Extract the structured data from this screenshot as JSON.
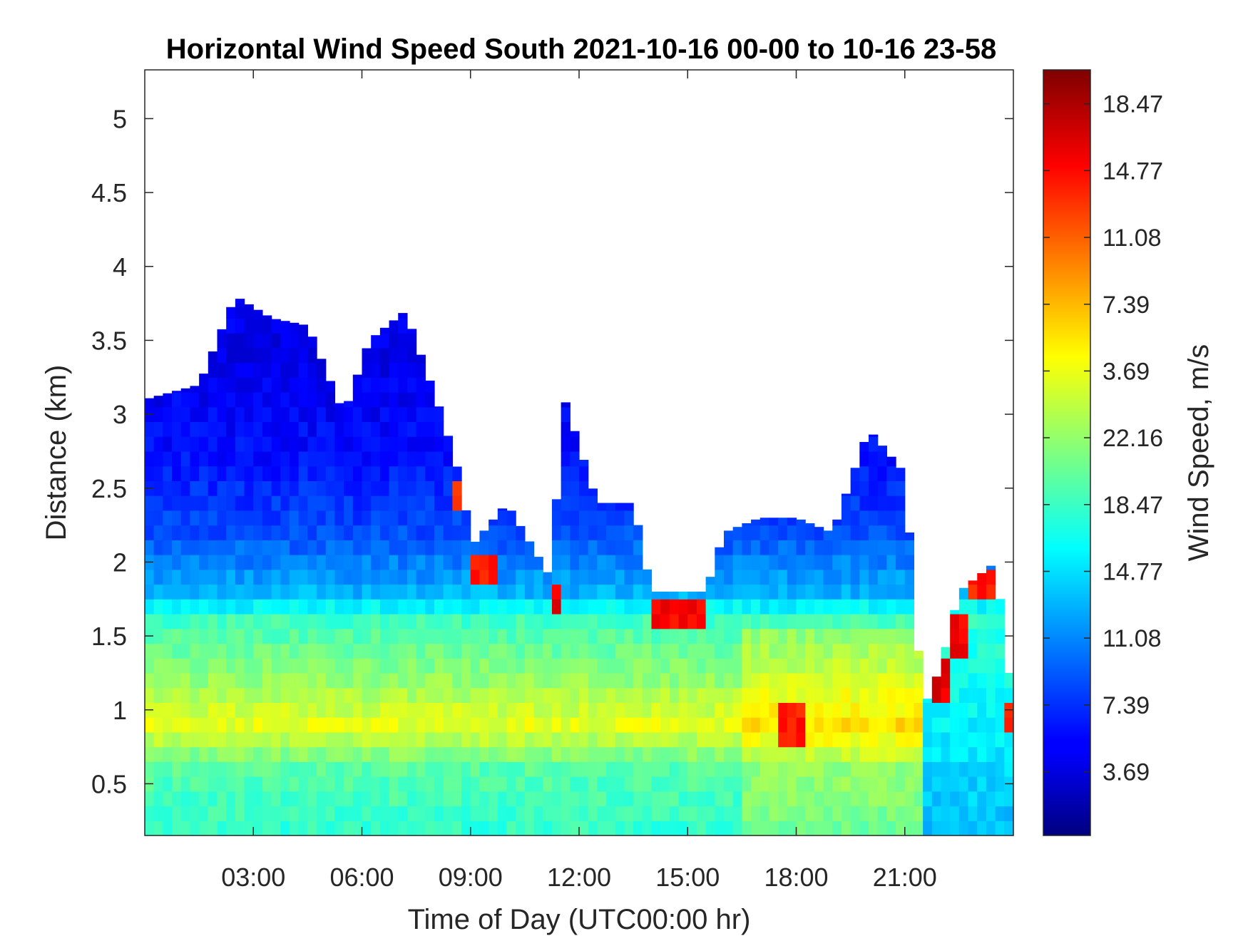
{
  "chart_data": {
    "type": "heatmap",
    "title": "Horizontal Wind Speed South 2021-10-16 00-00 to 10-16 23-58",
    "xlabel": "Time of Day (UTC00:00 hr)",
    "ylabel": "Distance (km)",
    "xlim_hours": [
      0,
      24
    ],
    "ylim": [
      0.15,
      5.33
    ],
    "x_ticks": [
      {
        "value": 3,
        "label": "03:00"
      },
      {
        "value": 6,
        "label": "06:00"
      },
      {
        "value": 9,
        "label": "09:00"
      },
      {
        "value": 12,
        "label": "12:00"
      },
      {
        "value": 15,
        "label": "15:00"
      },
      {
        "value": 18,
        "label": "18:00"
      },
      {
        "value": 21,
        "label": "21:00"
      }
    ],
    "y_ticks": [
      {
        "value": 0.5,
        "label": "0.5"
      },
      {
        "value": 1,
        "label": "1"
      },
      {
        "value": 1.5,
        "label": "1.5"
      },
      {
        "value": 2,
        "label": "2"
      },
      {
        "value": 2.5,
        "label": "2.5"
      },
      {
        "value": 3,
        "label": "3"
      },
      {
        "value": 3.5,
        "label": "3.5"
      },
      {
        "value": 4,
        "label": "4"
      },
      {
        "value": 4.5,
        "label": "4.5"
      },
      {
        "value": 5,
        "label": "5"
      }
    ],
    "colorbar": {
      "label": "Wind Speed, m/s",
      "colormap": "jet",
      "ticks": [
        {
          "fraction": 0.0833,
          "label": "3.69"
        },
        {
          "fraction": 0.1705,
          "label": "7.39"
        },
        {
          "fraction": 0.2578,
          "label": "11.08"
        },
        {
          "fraction": 0.345,
          "label": "14.77"
        },
        {
          "fraction": 0.4322,
          "label": "18.47"
        },
        {
          "fraction": 0.5195,
          "label": "22.16"
        },
        {
          "fraction": 0.6067,
          "label": "3.69"
        },
        {
          "fraction": 0.6939,
          "label": "7.39"
        },
        {
          "fraction": 0.7812,
          "label": "11.08"
        },
        {
          "fraction": 0.8684,
          "label": "14.77"
        },
        {
          "fraction": 0.9556,
          "label": "18.47"
        }
      ]
    },
    "cell_size": {
      "hours": 0.25,
      "km": 0.1
    },
    "data_top_km_profile": [
      {
        "hour": 0.0,
        "top": 3.1
      },
      {
        "hour": 1.5,
        "top": 3.2
      },
      {
        "hour": 2.5,
        "top": 3.8
      },
      {
        "hour": 3.5,
        "top": 3.65
      },
      {
        "hour": 4.5,
        "top": 3.6
      },
      {
        "hour": 5.5,
        "top": 3.0
      },
      {
        "hour": 6.2,
        "top": 3.5
      },
      {
        "hour": 7.2,
        "top": 3.7
      },
      {
        "hour": 8.2,
        "top": 3.0
      },
      {
        "hour": 8.8,
        "top": 2.5
      },
      {
        "hour": 9.0,
        "top": 2.1
      },
      {
        "hour": 10.0,
        "top": 2.4
      },
      {
        "hour": 11.2,
        "top": 1.9
      },
      {
        "hour": 11.6,
        "top": 3.1
      },
      {
        "hour": 12.5,
        "top": 2.4
      },
      {
        "hour": 13.5,
        "top": 2.4
      },
      {
        "hour": 14.0,
        "top": 1.8
      },
      {
        "hour": 15.5,
        "top": 1.8
      },
      {
        "hour": 16.0,
        "top": 2.2
      },
      {
        "hour": 17.0,
        "top": 2.3
      },
      {
        "hour": 18.0,
        "top": 2.3
      },
      {
        "hour": 19.0,
        "top": 2.2
      },
      {
        "hour": 20.0,
        "top": 2.9
      },
      {
        "hour": 21.0,
        "top": 2.6
      },
      {
        "hour": 21.5,
        "top": 1.0
      },
      {
        "hour": 22.0,
        "top": 1.3
      },
      {
        "hour": 22.5,
        "top": 1.8
      },
      {
        "hour": 23.5,
        "top": 2.0
      },
      {
        "hour": 24.0,
        "top": 1.0
      }
    ],
    "value_by_height_km": [
      {
        "km": 0.15,
        "value": 0.42
      },
      {
        "km": 0.6,
        "value": 0.46
      },
      {
        "km": 0.9,
        "value": 0.6
      },
      {
        "km": 1.2,
        "value": 0.52
      },
      {
        "km": 1.6,
        "value": 0.44
      },
      {
        "km": 1.8,
        "value": 0.3
      },
      {
        "km": 2.2,
        "value": 0.2
      },
      {
        "km": 2.7,
        "value": 0.14
      },
      {
        "km": 3.2,
        "value": 0.11
      },
      {
        "km": 4.0,
        "value": 0.1
      }
    ],
    "high_speed_patches": [
      {
        "h0": 8.6,
        "h1": 9.0,
        "k0": 2.35,
        "k1": 2.55,
        "value": 0.8
      },
      {
        "h0": 9.0,
        "h1": 9.8,
        "k0": 1.85,
        "k1": 2.1,
        "value": 0.85
      },
      {
        "h0": 11.2,
        "h1": 11.6,
        "k0": 1.7,
        "k1": 1.85,
        "value": 0.9
      },
      {
        "h0": 14.0,
        "h1": 15.6,
        "k0": 1.55,
        "k1": 1.8,
        "value": 0.88
      },
      {
        "h0": 17.6,
        "h1": 18.2,
        "k0": 0.75,
        "k1": 1.0,
        "value": 0.85
      },
      {
        "h0": 21.7,
        "h1": 22.2,
        "k0": 1.05,
        "k1": 1.3,
        "value": 0.9
      },
      {
        "h0": 22.2,
        "h1": 22.8,
        "k0": 1.4,
        "k1": 1.7,
        "value": 0.88
      },
      {
        "h0": 22.8,
        "h1": 23.6,
        "k0": 1.8,
        "k1": 1.95,
        "value": 0.85
      },
      {
        "h0": 23.7,
        "h1": 24.0,
        "k0": 0.8,
        "k1": 1.0,
        "value": 0.85
      }
    ],
    "legend": "none",
    "grid": false
  }
}
